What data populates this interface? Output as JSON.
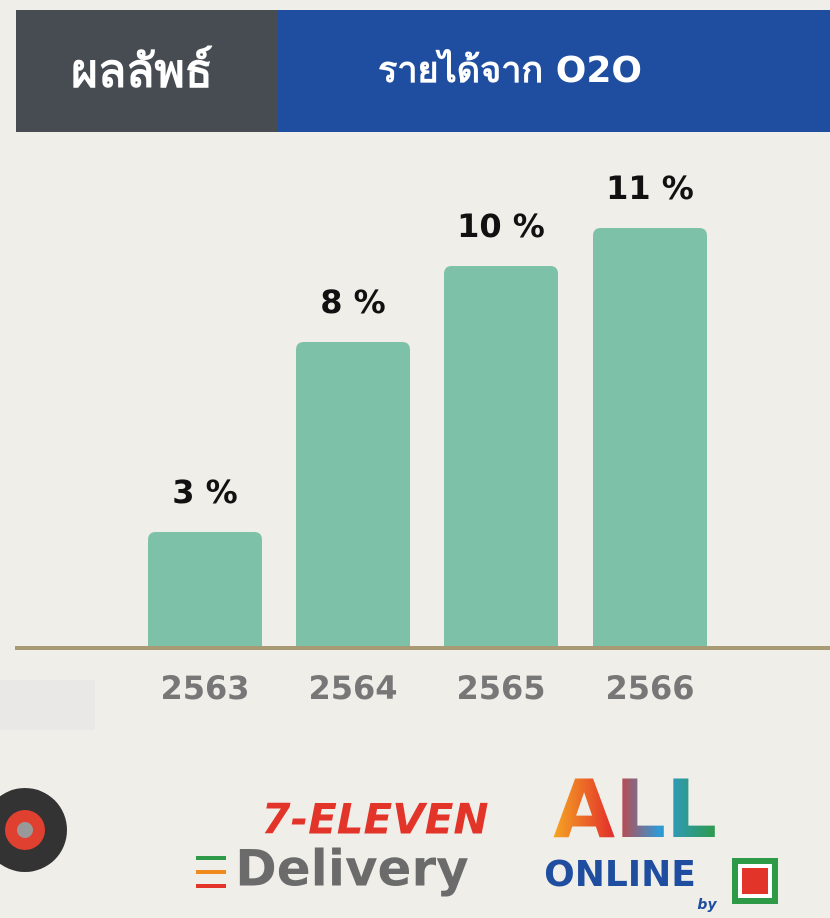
{
  "header": {
    "label": "ผลลัพธ์"
  },
  "chart_data": {
    "type": "bar",
    "title": "รายได้จาก O2O",
    "categories": [
      "2563",
      "2564",
      "2565",
      "2566"
    ],
    "values": [
      3,
      8,
      10,
      11
    ],
    "value_labels": [
      "3 %",
      "8 %",
      "10 %",
      "11 %"
    ],
    "color": "#7dc1a8"
  },
  "logos": {
    "seven_eleven": "7-ELEVEN",
    "delivery": "Delivery",
    "all": "ALL",
    "online": "ONLINE",
    "by": "by"
  }
}
